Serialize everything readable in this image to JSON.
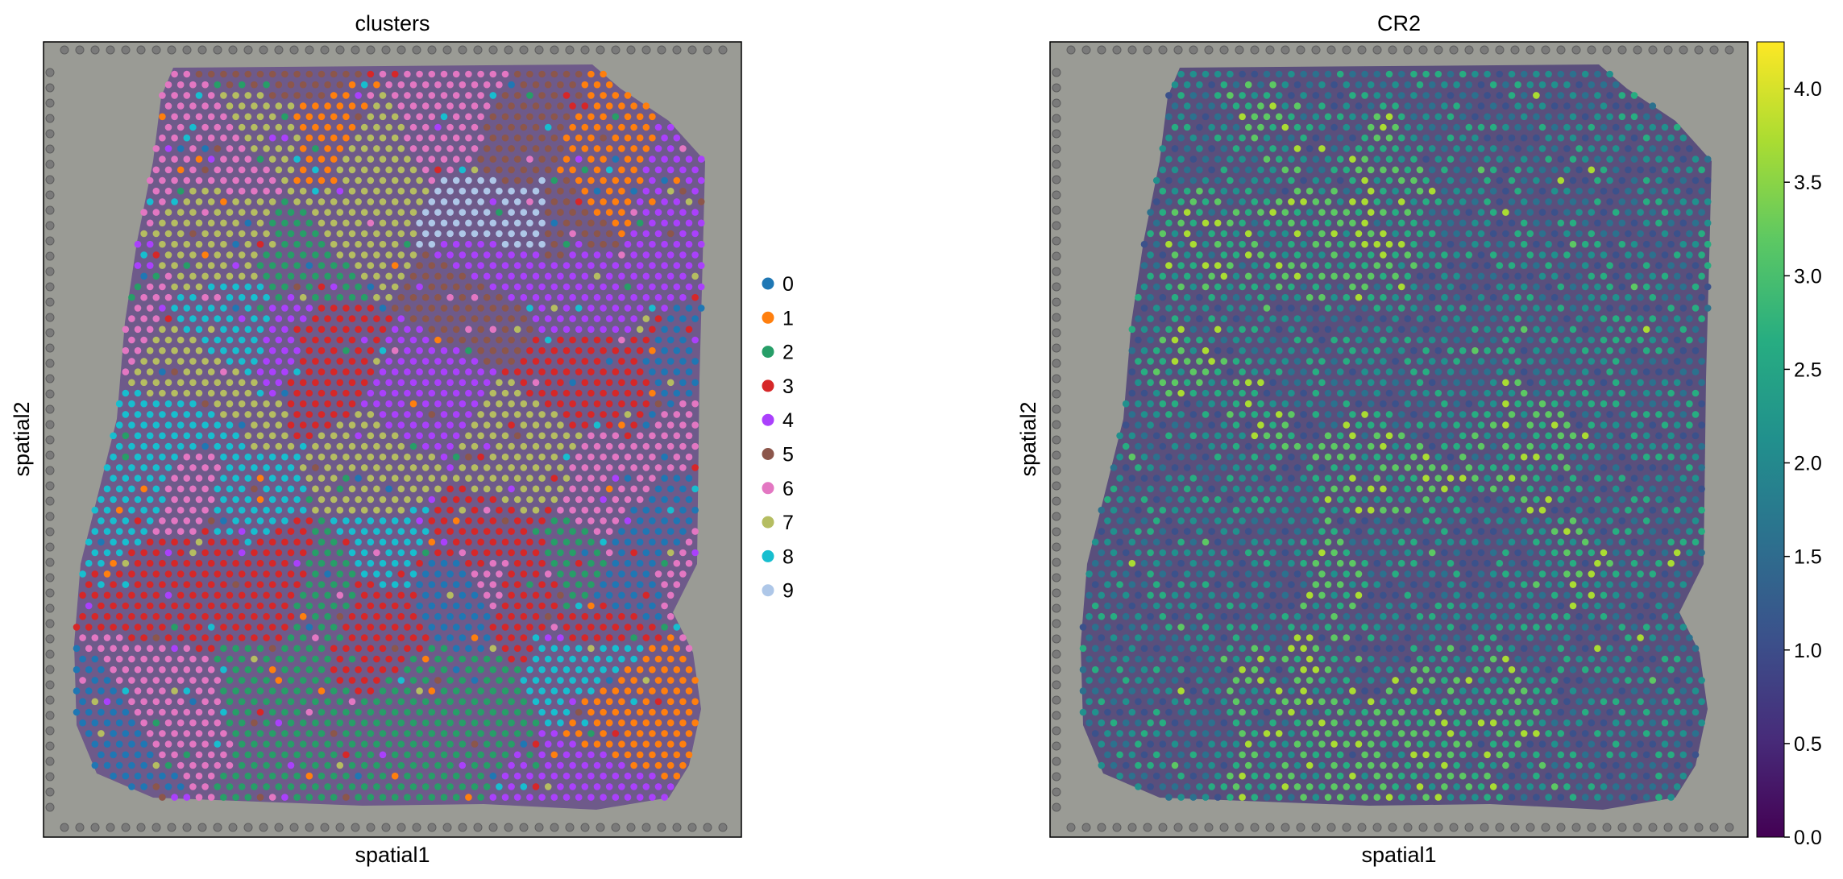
{
  "chart_data": [
    {
      "type": "scatter",
      "title": "clusters",
      "xlabel": "spatial1",
      "ylabel": "spatial2",
      "legend": {
        "placement": "right",
        "entries": [
          {
            "label": "0",
            "color": "#1f77b4"
          },
          {
            "label": "1",
            "color": "#ff7f0e"
          },
          {
            "label": "2",
            "color": "#279e68"
          },
          {
            "label": "3",
            "color": "#d62728"
          },
          {
            "label": "4",
            "color": "#aa40fc"
          },
          {
            "label": "5",
            "color": "#8c564b"
          },
          {
            "label": "6",
            "color": "#e377c2"
          },
          {
            "label": "7",
            "color": "#b5bd61"
          },
          {
            "label": "8",
            "color": "#17becf"
          },
          {
            "label": "9",
            "color": "#aec7e8"
          }
        ]
      },
      "background": "tissue histology image (H&E)",
      "grid": false
    },
    {
      "type": "scatter",
      "title": "CR2",
      "xlabel": "spatial1",
      "ylabel": "spatial2",
      "colorbar": {
        "cmap": "viridis",
        "range": [
          0.0,
          4.25
        ],
        "ticks": [
          "0.0",
          "0.5",
          "1.0",
          "1.5",
          "2.0",
          "2.5",
          "3.0",
          "3.5",
          "4.0"
        ]
      },
      "background": "tissue histology image (H&E)",
      "grid": false
    }
  ]
}
